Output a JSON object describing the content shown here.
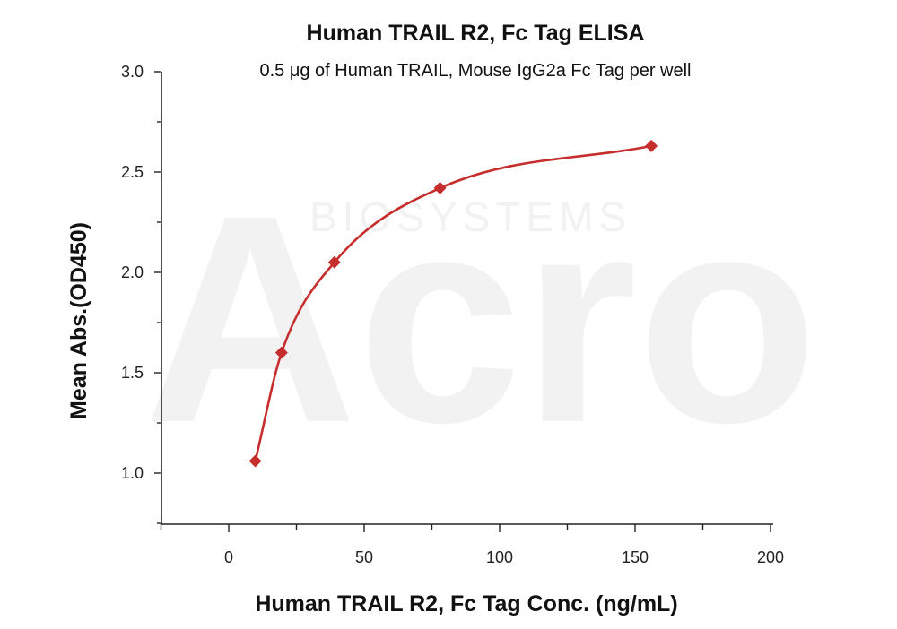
{
  "chart_data": {
    "type": "scatter",
    "title": "Human TRAIL R2, Fc Tag ELISA",
    "subtitle": "0.5 μg of Human TRAIL, Mouse IgG2a Fc Tag per well",
    "xlabel": "Human TRAIL R2, Fc Tag Conc. (ng/mL)",
    "ylabel": "Mean Abs.(OD450)",
    "xlim": [
      -25,
      200
    ],
    "ylim": [
      0.8,
      3.0
    ],
    "x_ticks": [
      0,
      50,
      100,
      150,
      200
    ],
    "y_ticks": [
      1.0,
      1.5,
      2.0,
      2.5,
      3.0
    ],
    "x_tick_labels": [
      "0",
      "50",
      "100",
      "150",
      "200"
    ],
    "y_tick_labels": [
      "1.0",
      "1.5",
      "2.0",
      "2.5",
      "3.0"
    ],
    "series": [
      {
        "points": [
          {
            "x": 9.8,
            "y": 1.06
          },
          {
            "x": 19.5,
            "y": 1.6
          },
          {
            "x": 39,
            "y": 2.05
          },
          {
            "x": 78,
            "y": 2.42
          },
          {
            "x": 156,
            "y": 2.63
          }
        ],
        "color": "#c62d2d",
        "marker": "diamond",
        "fit_curve": true
      }
    ],
    "grid": false,
    "legend": "none",
    "watermark": {
      "text_main": "Acro",
      "text_sub": "BIOSYSTEMS"
    }
  }
}
